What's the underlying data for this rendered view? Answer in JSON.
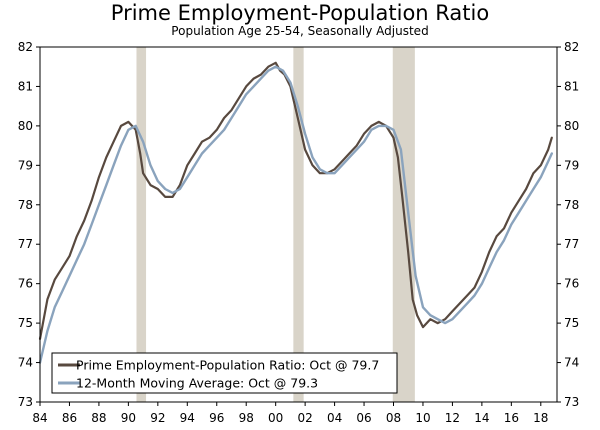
{
  "chart_data": {
    "type": "line",
    "title": "Prime Employment-Population Ratio",
    "subtitle": "Population Age 25-54, Seasonally Adjusted",
    "xlabel": "",
    "ylabel": "",
    "xlim": [
      1984,
      2019.1
    ],
    "ylim": [
      73,
      82
    ],
    "y_ticks": [
      73,
      74,
      75,
      76,
      77,
      78,
      79,
      80,
      81,
      82
    ],
    "x_ticks": [
      {
        "value": 1984,
        "label": "84"
      },
      {
        "value": 1986,
        "label": "86"
      },
      {
        "value": 1988,
        "label": "88"
      },
      {
        "value": 1990,
        "label": "90"
      },
      {
        "value": 1992,
        "label": "92"
      },
      {
        "value": 1994,
        "label": "94"
      },
      {
        "value": 1996,
        "label": "96"
      },
      {
        "value": 1998,
        "label": "98"
      },
      {
        "value": 2000,
        "label": "00"
      },
      {
        "value": 2002,
        "label": "02"
      },
      {
        "value": 2004,
        "label": "04"
      },
      {
        "value": 2006,
        "label": "06"
      },
      {
        "value": 2008,
        "label": "08"
      },
      {
        "value": 2010,
        "label": "10"
      },
      {
        "value": 2012,
        "label": "12"
      },
      {
        "value": 2014,
        "label": "14"
      },
      {
        "value": 2016,
        "label": "16"
      },
      {
        "value": 2018,
        "label": "18"
      }
    ],
    "recessions": [
      [
        1990.55,
        1991.2
      ],
      [
        2001.2,
        2001.9
      ],
      [
        2007.95,
        2009.45
      ]
    ],
    "legend_position": "bottom-left",
    "series": [
      {
        "name": "Prime Employment-Population Ratio: Oct @ 79.7",
        "color": "#58493f",
        "x": [
          1984.0,
          1984.5,
          1985.0,
          1985.5,
          1986.0,
          1986.5,
          1987.0,
          1987.5,
          1988.0,
          1988.5,
          1989.0,
          1989.5,
          1990.0,
          1990.5,
          1990.8,
          1991.0,
          1991.5,
          1992.0,
          1992.5,
          1993.0,
          1993.5,
          1994.0,
          1994.5,
          1995.0,
          1995.5,
          1996.0,
          1996.5,
          1997.0,
          1997.5,
          1998.0,
          1998.5,
          1999.0,
          1999.5,
          2000.0,
          2000.3,
          2000.6,
          2001.0,
          2001.5,
          2002.0,
          2002.5,
          2003.0,
          2003.5,
          2004.0,
          2004.5,
          2005.0,
          2005.5,
          2006.0,
          2006.5,
          2007.0,
          2007.5,
          2008.0,
          2008.3,
          2008.6,
          2009.0,
          2009.3,
          2009.6,
          2010.0,
          2010.5,
          2011.0,
          2011.5,
          2012.0,
          2012.5,
          2013.0,
          2013.5,
          2014.0,
          2014.5,
          2015.0,
          2015.5,
          2016.0,
          2016.5,
          2017.0,
          2017.5,
          2018.0,
          2018.5,
          2018.75
        ],
        "values": [
          74.6,
          75.6,
          76.1,
          76.4,
          76.7,
          77.2,
          77.6,
          78.1,
          78.7,
          79.2,
          79.6,
          80.0,
          80.1,
          79.9,
          79.3,
          78.8,
          78.5,
          78.4,
          78.2,
          78.2,
          78.5,
          79.0,
          79.3,
          79.6,
          79.7,
          79.9,
          80.2,
          80.4,
          80.7,
          81.0,
          81.2,
          81.3,
          81.5,
          81.6,
          81.4,
          81.3,
          81.0,
          80.2,
          79.4,
          79.0,
          78.8,
          78.8,
          78.9,
          79.1,
          79.3,
          79.5,
          79.8,
          80.0,
          80.1,
          80.0,
          79.7,
          79.2,
          78.2,
          76.8,
          75.6,
          75.2,
          74.9,
          75.1,
          75.0,
          75.1,
          75.3,
          75.5,
          75.7,
          75.9,
          76.3,
          76.8,
          77.2,
          77.4,
          77.8,
          78.1,
          78.4,
          78.8,
          79.0,
          79.4,
          79.7
        ]
      },
      {
        "name": "12-Month Moving Average: Oct @ 79.3",
        "color": "#8aa3bd",
        "x": [
          1984.0,
          1984.5,
          1985.0,
          1985.5,
          1986.0,
          1986.5,
          1987.0,
          1987.5,
          1988.0,
          1988.5,
          1989.0,
          1989.5,
          1990.0,
          1990.5,
          1991.0,
          1991.5,
          1992.0,
          1992.5,
          1993.0,
          1993.5,
          1994.0,
          1994.5,
          1995.0,
          1995.5,
          1996.0,
          1996.5,
          1997.0,
          1997.5,
          1998.0,
          1998.5,
          1999.0,
          1999.5,
          2000.0,
          2000.5,
          2001.0,
          2001.5,
          2002.0,
          2002.5,
          2003.0,
          2003.5,
          2004.0,
          2004.5,
          2005.0,
          2005.5,
          2006.0,
          2006.5,
          2007.0,
          2007.5,
          2008.0,
          2008.5,
          2009.0,
          2009.5,
          2010.0,
          2010.5,
          2011.0,
          2011.5,
          2012.0,
          2012.5,
          2013.0,
          2013.5,
          2014.0,
          2014.5,
          2015.0,
          2015.5,
          2016.0,
          2016.5,
          2017.0,
          2017.5,
          2018.0,
          2018.5,
          2018.75
        ],
        "values": [
          74.0,
          74.8,
          75.4,
          75.8,
          76.2,
          76.6,
          77.0,
          77.5,
          78.0,
          78.5,
          79.0,
          79.5,
          79.9,
          80.0,
          79.6,
          79.0,
          78.6,
          78.4,
          78.3,
          78.4,
          78.7,
          79.0,
          79.3,
          79.5,
          79.7,
          79.9,
          80.2,
          80.5,
          80.8,
          81.0,
          81.2,
          81.4,
          81.5,
          81.4,
          81.1,
          80.5,
          79.8,
          79.2,
          78.9,
          78.8,
          78.8,
          79.0,
          79.2,
          79.4,
          79.6,
          79.9,
          80.0,
          80.0,
          79.9,
          79.4,
          77.8,
          76.2,
          75.4,
          75.2,
          75.1,
          75.0,
          75.1,
          75.3,
          75.5,
          75.7,
          76.0,
          76.4,
          76.8,
          77.1,
          77.5,
          77.8,
          78.1,
          78.4,
          78.7,
          79.1,
          79.3
        ]
      }
    ]
  }
}
